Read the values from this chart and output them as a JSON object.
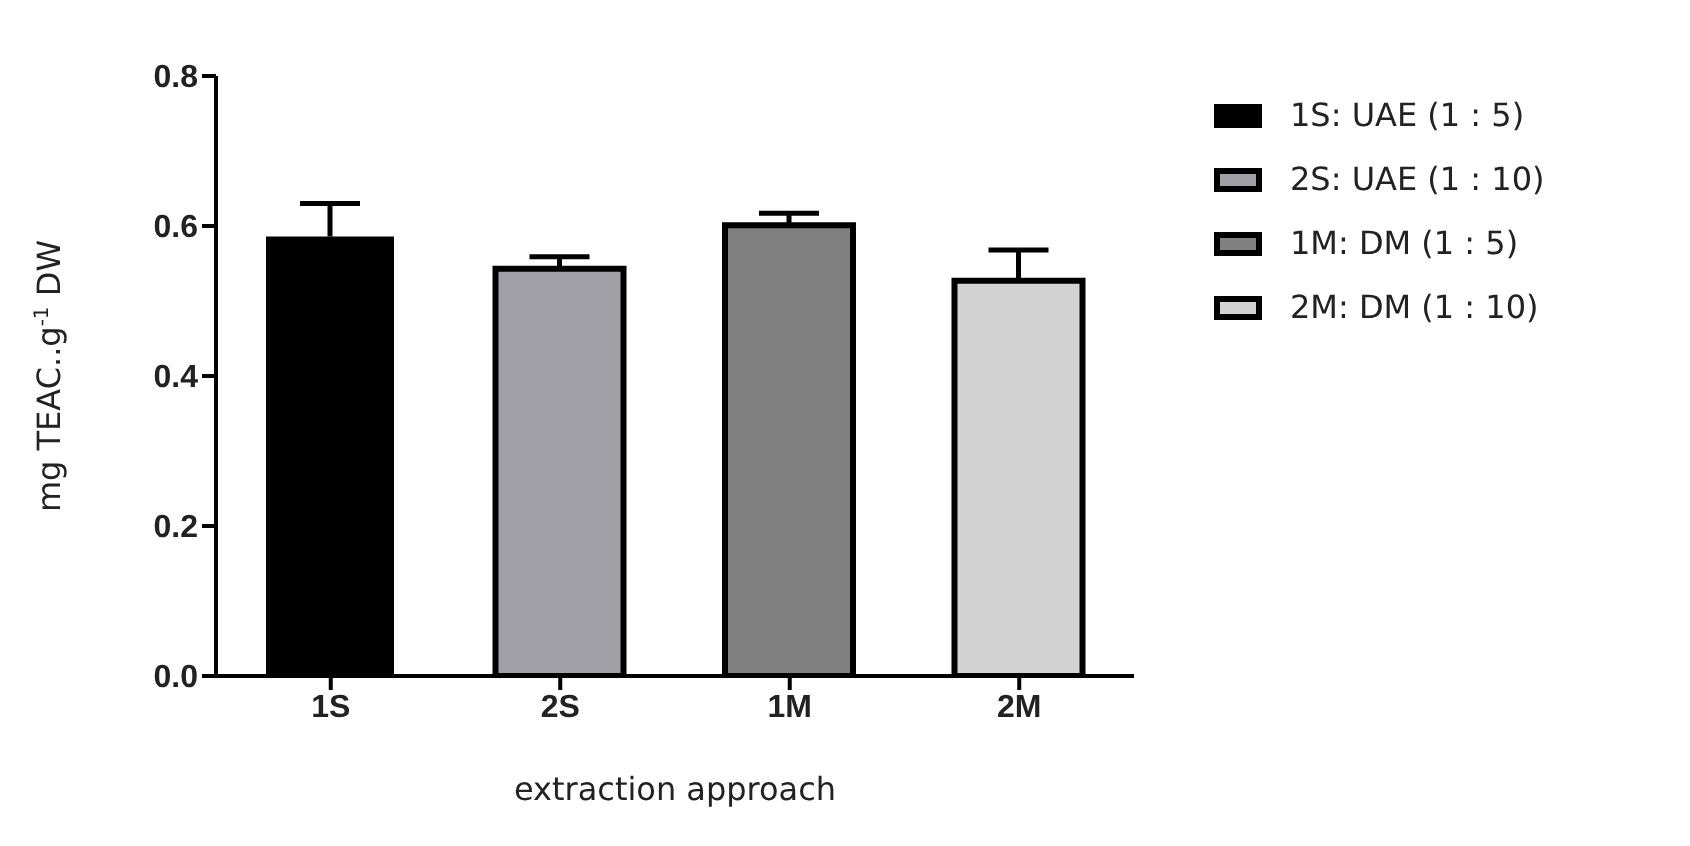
{
  "chart_data": {
    "type": "bar",
    "xlabel": "extraction approach",
    "ylabel": "mg TEAC..g$^{-1}$ DW",
    "categories": [
      "1S",
      "2S",
      "1M",
      "2M"
    ],
    "stacked": true,
    "series": [
      {
        "name": "1S: UAE (1 : 5)",
        "color": "#000000",
        "values": [
          0.586,
          null,
          null,
          null
        ],
        "errors": [
          [
            0.586,
            0.63
          ],
          null,
          null,
          null
        ]
      },
      {
        "name": "2S: UAE (1 : 10)",
        "color": "#a0a0a6",
        "values": [
          null,
          0.543,
          null,
          null
        ],
        "errors": [
          null,
          [
            0.543,
            0.559
          ],
          null,
          null
        ]
      },
      {
        "name": "1M: DM (1 : 5)",
        "color": "#808080",
        "values": [
          null,
          null,
          0.601,
          null
        ],
        "errors": [
          null,
          null,
          [
            0.601,
            0.617
          ],
          null
        ]
      },
      {
        "name": "2M: DM (1 : 10)",
        "color": "#d3d3d3",
        "values": [
          null,
          null,
          null,
          0.527
        ],
        "errors": [
          null,
          null,
          null,
          [
            0.527,
            0.568
          ]
        ]
      }
    ],
    "ylim": [
      0,
      0.8
    ],
    "yticks": [
      {
        "value": 0,
        "label": "0.0"
      },
      {
        "value": 0.2,
        "label": "0.2"
      },
      {
        "value": 0.4,
        "label": "0.4"
      },
      {
        "value": 0.6,
        "label": "0.6"
      },
      {
        "value": 0.8,
        "label": "0.8"
      }
    ],
    "legend": "right"
  }
}
